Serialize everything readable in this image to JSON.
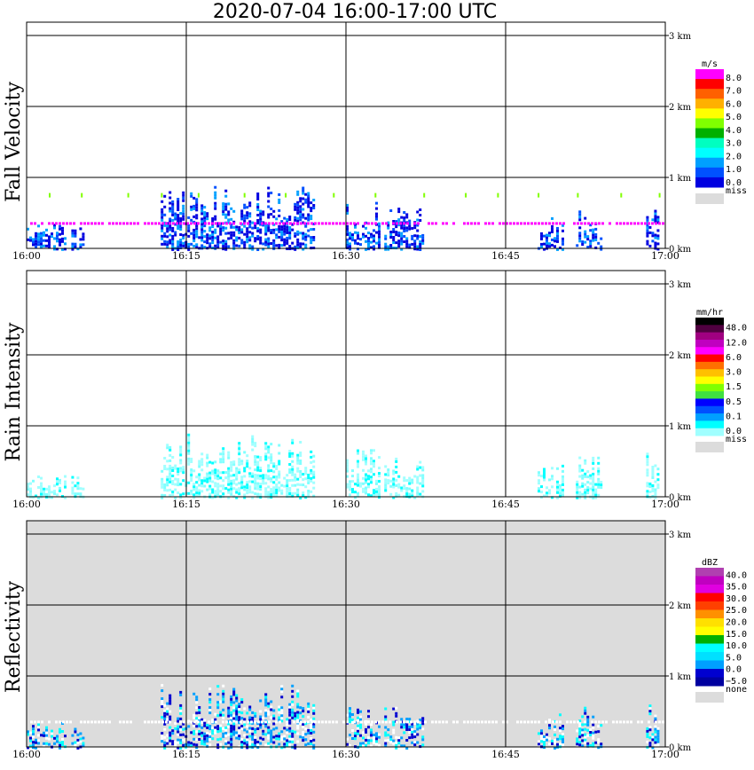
{
  "title": "2020-07-04   16:00-17:00 UTC",
  "x_ticks": [
    "16:00",
    "16:15",
    "16:30",
    "16:45",
    "17:00"
  ],
  "km_ticks": [
    "3 km",
    "2 km",
    "1 km",
    "0 km"
  ],
  "colors": {
    "missing": "#dcdcdc",
    "grid": "#000000"
  },
  "panels": [
    {
      "id": "fall-velocity",
      "ylabel": "Fall Velocity",
      "unit": "m/s",
      "background": "#ffffff",
      "colorbar": {
        "colors": [
          "#ff00ff",
          "#ff0000",
          "#ff6000",
          "#ffb000",
          "#ffff00",
          "#80ff00",
          "#00b000",
          "#00ffc0",
          "#00ffff",
          "#00a0ff",
          "#0050ff",
          "#0000e0"
        ],
        "labels": [
          "8.0",
          "7.0",
          "6.0",
          "5.0",
          "4.0",
          "3.0",
          "2.0",
          "1.0",
          "0.0"
        ],
        "miss_label": "miss"
      }
    },
    {
      "id": "rain-intensity",
      "ylabel": "Rain Intensity",
      "unit": "mm/hr",
      "background": "#ffffff",
      "colorbar": {
        "colors": [
          "#000000",
          "#500040",
          "#a00080",
          "#c000c0",
          "#ff00ff",
          "#ff0000",
          "#ff7000",
          "#ffc000",
          "#ffff00",
          "#80ff00",
          "#40e040",
          "#0000ff",
          "#0050ff",
          "#00a0ff",
          "#00ffff",
          "#a0ffff"
        ],
        "labels": [
          "48.0",
          "12.0",
          "6.0",
          "3.0",
          "1.5",
          "0.5",
          "0.1",
          "0.0"
        ],
        "miss_label": "miss"
      }
    },
    {
      "id": "reflectivity",
      "ylabel": "Reflectivity",
      "unit": "dBZ",
      "background": "#dcdcdc",
      "colorbar": {
        "colors": [
          "#b040b0",
          "#c000c0",
          "#e000e0",
          "#ff0000",
          "#ff4000",
          "#ff9000",
          "#ffe000",
          "#ffff00",
          "#00b000",
          "#00ffff",
          "#00e0ff",
          "#00a0ff",
          "#0000d0",
          "#0000a0"
        ],
        "labels": [
          "40.0",
          "35.0",
          "30.0",
          "25.0",
          "20.0",
          "15.0",
          "10.0",
          "5.0",
          "0.0",
          "−5.0"
        ],
        "miss_label": "none"
      }
    }
  ]
}
